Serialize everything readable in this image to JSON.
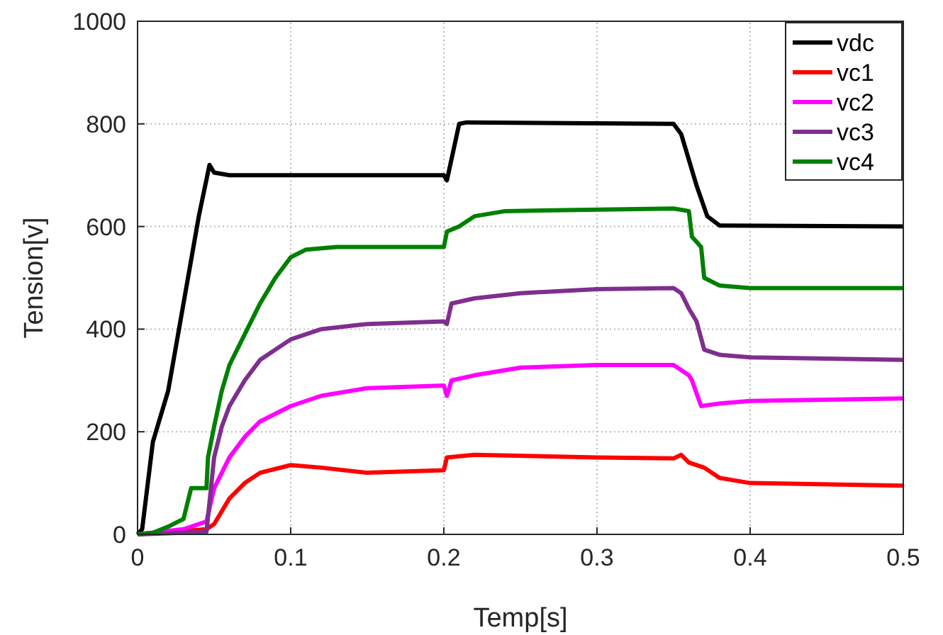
{
  "chart_data": {
    "type": "line",
    "xlabel": "Temp[s]",
    "ylabel": "Tension[v]",
    "xlim": [
      0,
      0.5
    ],
    "ylim": [
      0,
      1000
    ],
    "xticks": [
      0,
      0.1,
      0.2,
      0.3,
      0.4,
      0.5
    ],
    "yticks": [
      0,
      200,
      400,
      600,
      800,
      1000
    ],
    "grid": true,
    "legend": "top right",
    "line_style": "solid",
    "series": [
      {
        "name": "vdc",
        "color": "#000000",
        "x": [
          0,
          0.003,
          0.01,
          0.02,
          0.03,
          0.04,
          0.047,
          0.05,
          0.06,
          0.2,
          0.202,
          0.21,
          0.215,
          0.35,
          0.355,
          0.365,
          0.372,
          0.38,
          0.5
        ],
        "values": [
          0,
          10,
          180,
          280,
          450,
          620,
          720,
          705,
          700,
          700,
          690,
          800,
          803,
          800,
          780,
          680,
          620,
          602,
          600
        ]
      },
      {
        "name": "vc1",
        "color": "#ff0000",
        "x": [
          0,
          0.045,
          0.05,
          0.06,
          0.07,
          0.08,
          0.1,
          0.12,
          0.15,
          0.2,
          0.202,
          0.22,
          0.3,
          0.35,
          0.355,
          0.36,
          0.37,
          0.38,
          0.4,
          0.5
        ],
        "values": [
          0,
          10,
          20,
          70,
          100,
          120,
          135,
          130,
          120,
          125,
          150,
          155,
          150,
          148,
          155,
          140,
          130,
          110,
          100,
          95
        ]
      },
      {
        "name": "vc2",
        "color": "#ff00ff",
        "x": [
          0,
          0.03,
          0.045,
          0.05,
          0.06,
          0.07,
          0.08,
          0.1,
          0.12,
          0.15,
          0.2,
          0.202,
          0.205,
          0.22,
          0.25,
          0.3,
          0.35,
          0.36,
          0.362,
          0.368,
          0.38,
          0.4,
          0.5
        ],
        "values": [
          0,
          10,
          25,
          90,
          150,
          190,
          220,
          250,
          270,
          285,
          290,
          270,
          300,
          310,
          325,
          330,
          330,
          310,
          300,
          250,
          255,
          260,
          265
        ]
      },
      {
        "name": "vc3",
        "color": "#7e2f8e",
        "x": [
          0,
          0.045,
          0.05,
          0.055,
          0.06,
          0.07,
          0.08,
          0.1,
          0.12,
          0.15,
          0.2,
          0.202,
          0.205,
          0.22,
          0.25,
          0.3,
          0.35,
          0.355,
          0.36,
          0.365,
          0.37,
          0.38,
          0.4,
          0.5
        ],
        "values": [
          0,
          5,
          150,
          210,
          250,
          300,
          340,
          380,
          400,
          410,
          415,
          410,
          450,
          460,
          470,
          478,
          480,
          470,
          440,
          415,
          360,
          350,
          345,
          340
        ]
      },
      {
        "name": "vc4",
        "color": "#008000",
        "x": [
          0,
          0.01,
          0.02,
          0.03,
          0.035,
          0.045,
          0.046,
          0.05,
          0.055,
          0.06,
          0.07,
          0.08,
          0.09,
          0.1,
          0.11,
          0.13,
          0.2,
          0.202,
          0.21,
          0.22,
          0.24,
          0.35,
          0.36,
          0.362,
          0.368,
          0.37,
          0.38,
          0.4,
          0.5
        ],
        "values": [
          0,
          3,
          15,
          30,
          90,
          90,
          150,
          210,
          280,
          330,
          390,
          450,
          500,
          540,
          555,
          560,
          560,
          590,
          600,
          620,
          630,
          635,
          630,
          580,
          560,
          500,
          485,
          480,
          480
        ]
      }
    ]
  }
}
